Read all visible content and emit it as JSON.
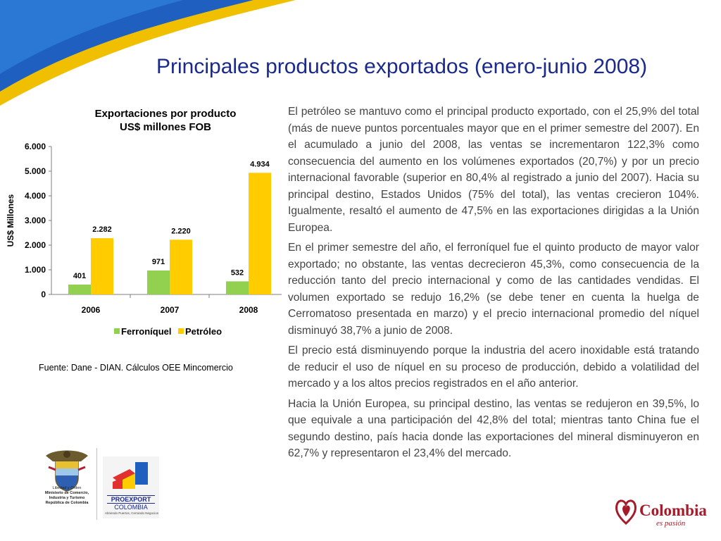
{
  "slide": {
    "title": "Principales productos exportados (enero-junio 2008)",
    "source": "Fuente: Dane - DIAN. Cálculos OEE Mincomercio",
    "paragraphs": [
      "El petróleo se mantuvo como el principal producto exportado, con el 25,9% del total (más de nueve puntos porcentuales mayor que en el primer semestre del 2007). En el acumulado a junio del 2008, las ventas se incrementaron 122,3% como consecuencia del aumento en los volúmenes exportados (20,7%) y por un precio internacional favorable (superior en 80,4% al registrado a junio del 2007). Hacia su principal destino, Estados Unidos (75% del total), las ventas crecieron 104%. Igualmente, resaltó el aumento de 47,5% en las exportaciones dirigidas a la Unión Europea.",
      "En el primer semestre del año, el ferroníquel fue el quinto producto de mayor valor exportado; no obstante, las ventas decrecieron 45,3%, como consecuencia de la reducción tanto del precio internacional y como de las cantidades vendidas. El volumen exportado se redujo 16,2% (se debe tener en cuenta la huelga de Cerromatoso presentada en marzo) y el precio internacional promedio del níquel disminuyó 38,7% a junio de 2008.",
      "El precio está disminuyendo porque la industria del acero inoxidable está tratando de reducir el uso de níquel en su proceso de producción, debido a volatilidad del mercado y a los altos precios registrados en el año anterior.",
      "Hacia la Unión Europea, su principal destino, las ventas se redujeron en 39,5%, lo que equivale a una participación del 42,8% del total; mientras tanto China fue el segundo destino, país hacia donde las exportaciones del mineral disminuyeron en 62,7% y representaron el 23,4% del mercado."
    ],
    "logos": {
      "mincomercio_caption": [
        "Libertad y Orden",
        "Ministerio de Comercio,",
        "Industria y Turismo",
        "República de Colombia"
      ],
      "proexport_name": "PROEXPORT",
      "proexport_country": "COLOMBIA",
      "proexport_tagline": "Abriendo Puertos, Cerrando Negocios",
      "colombia_word": "Colombia",
      "colombia_tagline": "es pasión"
    },
    "colors": {
      "title": "#1a2a8c",
      "ferroniquel": "#92d050",
      "petroleo": "#ffcc00",
      "swoosh_blue": "#1f5fbf",
      "swoosh_yellow": "#f0c000",
      "brand_red": "#a51b2a"
    }
  },
  "chart_data": {
    "type": "bar",
    "title": "Exportaciones por producto",
    "subtitle": "US$ millones FOB",
    "ylabel": "US$ Millones",
    "xlabel": "",
    "ylim": [
      0,
      6000
    ],
    "yticks": [
      "0",
      "1.000",
      "2.000",
      "3.000",
      "4.000",
      "5.000",
      "6.000"
    ],
    "categories": [
      "2006",
      "2007",
      "2008"
    ],
    "legend_position": "bottom",
    "grid": false,
    "series": [
      {
        "name": "Ferroníquel",
        "values": [
          401,
          971,
          532
        ],
        "labels": [
          "401",
          "971",
          "532"
        ],
        "color": "#92d050"
      },
      {
        "name": "Petróleo",
        "values": [
          2282,
          2220,
          4934
        ],
        "labels": [
          "2.282",
          "2.220",
          "4.934"
        ],
        "color": "#ffcc00"
      }
    ]
  }
}
